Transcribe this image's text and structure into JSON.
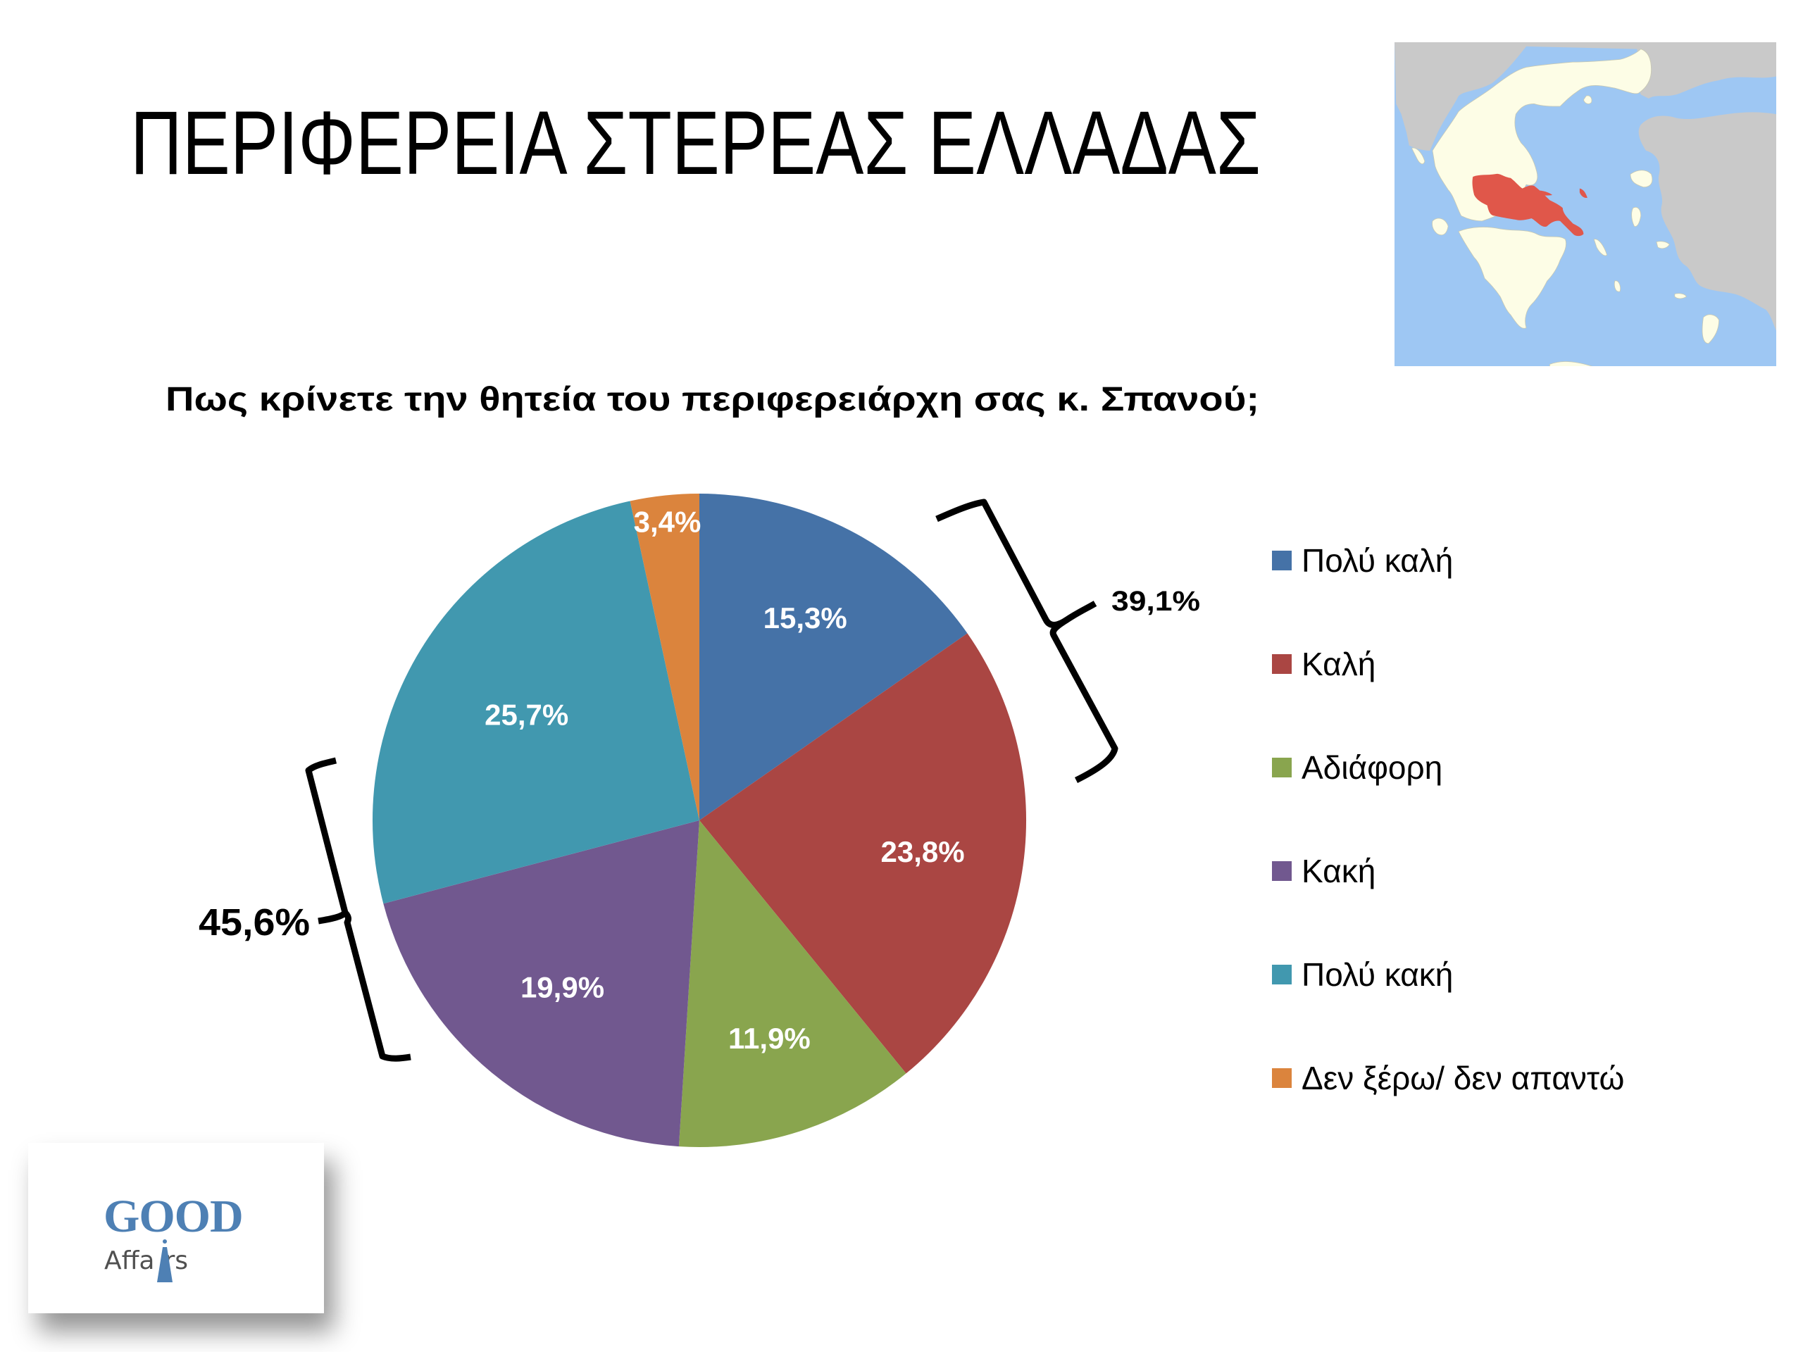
{
  "slide": {
    "title": "ΠΕΡΙΦΕΡΕΙΑ ΣΤΕΡΕΑΣ ΕΛΛΑΔΑΣ",
    "question": "Πως κρίνετε την θητεία του περιφερειάρχη σας κ. Σπανού;",
    "map": {
      "icon": "greece-region-map",
      "highlighted_region": "Στερεά Ελλάδα",
      "colors": {
        "sea": "#9EC7F3",
        "greece_land": "#FDFDE6",
        "other_land": "#C9C9C9",
        "highlight": "#E0574A"
      }
    },
    "logo": {
      "line1": "GOOD",
      "line2_before": "Affa",
      "line2_after": "rs",
      "colors": {
        "good": "#4E80B4",
        "affairs": "#505050"
      }
    },
    "brackets": {
      "positive_total": "39,1%",
      "negative_total": "45,6%"
    }
  },
  "chart_data": {
    "type": "pie",
    "title": "Πως κρίνετε την θητεία του περιφερειάρχη σας κ. Σπανού;",
    "categories": [
      "Πολύ καλή",
      "Καλή",
      "Αδιάφορη",
      "Κακή",
      "Πολύ κακή",
      "Δεν ξέρω/ δεν απαντώ"
    ],
    "values": [
      15.3,
      23.8,
      11.9,
      19.9,
      25.7,
      3.4
    ],
    "labels": [
      "15,3%",
      "23,8%",
      "11,9%",
      "19,9%",
      "25,7%",
      "3,4%"
    ],
    "colors": [
      "#4572A7",
      "#AA4643",
      "#89A54E",
      "#71588F",
      "#4198AF",
      "#DB843D"
    ],
    "start_angle": "12 o'clock, clockwise",
    "legend_position": "right",
    "annotations": [
      {
        "text": "39,1%",
        "groups": [
          "Πολύ καλή",
          "Καλή"
        ]
      },
      {
        "text": "45,6%",
        "groups": [
          "Κακή",
          "Πολύ κακή"
        ]
      }
    ]
  }
}
